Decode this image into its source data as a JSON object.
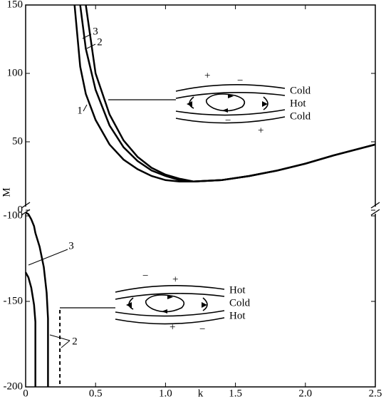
{
  "chart_data": [
    {
      "type": "line",
      "ylabel": "M",
      "x": [
        0.35,
        0.39,
        0.43,
        0.5,
        0.6,
        0.7,
        0.8,
        0.9,
        1.0,
        1.1,
        1.2,
        1.4,
        1.6,
        1.8,
        2.0,
        2.2,
        2.5
      ],
      "series": [
        {
          "name": "1",
          "color": "#000000",
          "values": [
            150,
            105,
            85,
            66,
            48,
            37,
            30,
            25,
            22,
            21,
            21,
            22,
            25,
            29,
            34,
            40,
            48
          ]
        },
        {
          "name": "3",
          "color": "#000000",
          "values": [
            null,
            150,
            118,
            88,
            62,
            46,
            36,
            29,
            25,
            22,
            21,
            22,
            25,
            29,
            34,
            40,
            48
          ]
        },
        {
          "name": "2",
          "color": "#000000",
          "values": [
            null,
            null,
            150,
            100,
            70,
            51,
            39,
            31,
            26,
            23,
            21,
            22,
            25,
            29,
            34,
            40,
            48
          ]
        }
      ],
      "xlim": [
        0,
        2.5
      ],
      "ylim": [
        0,
        150
      ],
      "yticks": [
        0,
        50,
        100,
        150
      ],
      "annotations": [
        "Cold",
        "Hot",
        "Cold",
        "+",
        "−",
        "−",
        "+"
      ]
    },
    {
      "type": "line",
      "xlabel": "k",
      "x": [
        0,
        0.02,
        0.04,
        0.06,
        0.07,
        0.07,
        0.1,
        0.13,
        0.15,
        0.16,
        0.16,
        0.245,
        0.245
      ],
      "series": [
        {
          "name": "3",
          "color": "#000000",
          "values": [
            -133,
            -136,
            -142,
            -152,
            -162,
            -200,
            null,
            null,
            null,
            null,
            null,
            null,
            null
          ]
        },
        {
          "name": "2",
          "color": "#000000",
          "values": [
            -98,
            -99,
            -102,
            -106,
            -110,
            -110,
            -118,
            -130,
            -145,
            -160,
            -200,
            null,
            null
          ]
        },
        {
          "color": "#000000",
          "dashed": true,
          "values": [
            null,
            null,
            null,
            null,
            null,
            null,
            null,
            null,
            null,
            null,
            null,
            -155,
            -200
          ]
        }
      ],
      "xlim": [
        0,
        2.5
      ],
      "ylim": [
        -200,
        -100
      ],
      "yticks": [
        -100,
        -150,
        -200
      ],
      "xticks": [
        0,
        0.5,
        {
          "value": 1.0,
          "label": "1.0"
        },
        1.5,
        {
          "value": 2.0,
          "label": "2.0"
        },
        2.5
      ],
      "annotations": [
        "Hot",
        "Cold",
        "Hot",
        "−",
        "+",
        "+",
        "−"
      ]
    }
  ]
}
